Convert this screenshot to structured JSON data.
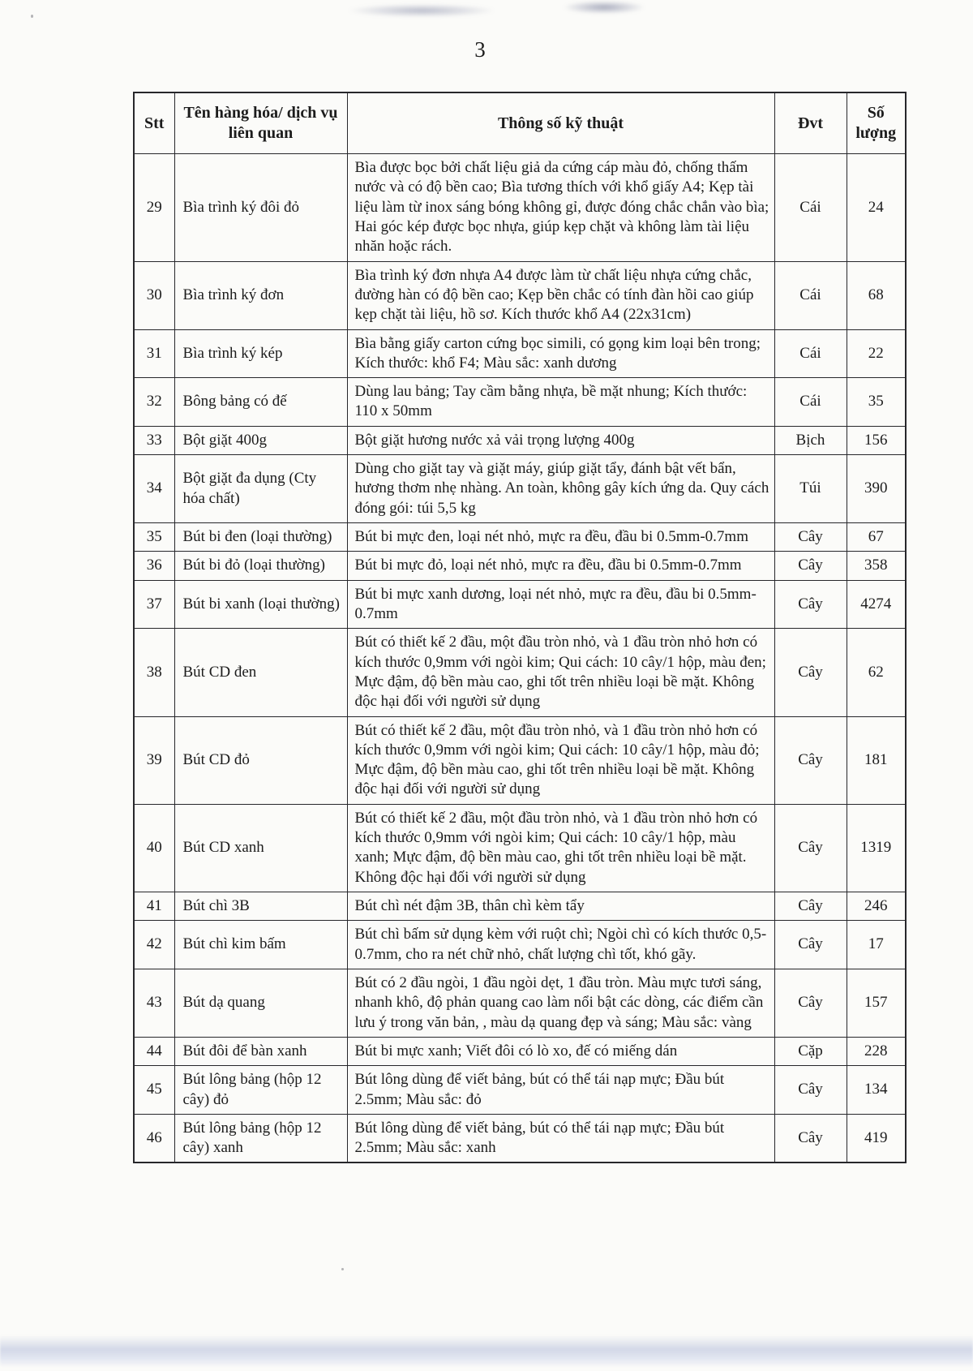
{
  "page": {
    "number": "3"
  },
  "colors": {
    "paper": "#fbfbf9",
    "ink": "#1c1c1c",
    "scan_band": "#c6cde2"
  },
  "table": {
    "headers": [
      "Stt",
      "Tên hàng hóa/ dịch vụ liên quan",
      "Thông số kỹ thuật",
      "Đvt",
      "Số lượng"
    ],
    "rows": [
      {
        "stt": "29",
        "name": "Bìa trình ký đôi đỏ",
        "spec": "Bìa được bọc bởi chất liệu giả da cứng cáp màu đỏ, chống thấm nước và có độ bền cao; Bìa tương thích với khổ giấy A4; Kẹp tài liệu làm từ inox sáng bóng không gỉ, được đóng chắc chắn vào bìa; Hai góc kép được bọc nhựa, giúp kẹp chặt và không làm tài liệu nhăn hoặc rách.",
        "unit": "Cái",
        "qty": "24"
      },
      {
        "stt": "30",
        "name": "Bìa trình ký đơn",
        "spec": "Bìa trình ký đơn nhựa A4 được làm từ chất liệu nhựa cứng chắc, đường hàn có độ bền cao; Kẹp bền chắc có tính đàn hồi cao giúp kẹp chặt tài liệu, hồ sơ. Kích thước khổ A4 (22x31cm)",
        "unit": "Cái",
        "qty": "68"
      },
      {
        "stt": "31",
        "name": "Bìa trình ký kép",
        "spec": "Bìa bằng giấy carton cứng bọc simili, có gọng kim loại bên trong; Kích thước: khổ F4; Màu sắc: xanh dương",
        "unit": "Cái",
        "qty": "22"
      },
      {
        "stt": "32",
        "name": "Bông bảng có đế",
        "spec": "Dùng lau bảng; Tay cầm bằng nhựa, bề mặt nhung; Kích thước: 110 x 50mm",
        "unit": "Cái",
        "qty": "35"
      },
      {
        "stt": "33",
        "name": "Bột giặt 400g",
        "spec": "Bột giặt hương nước xả vải trọng lượng 400g",
        "unit": "Bịch",
        "qty": "156"
      },
      {
        "stt": "34",
        "name": "Bột giặt đa dụng (Cty hóa chất)",
        "spec": "Dùng cho giặt tay và giặt máy, giúp giặt tẩy, đánh bật vết bẩn, hương thơm nhẹ nhàng. An toàn, không gây kích ứng da. Quy cách đóng gói: túi 5,5 kg",
        "unit": "Túi",
        "qty": "390"
      },
      {
        "stt": "35",
        "name": "Bút bi đen (loại thường)",
        "spec": "Bút bi mực đen, loại nét nhỏ, mực ra đều, đầu bi 0.5mm-0.7mm",
        "unit": "Cây",
        "qty": "67"
      },
      {
        "stt": "36",
        "name": "Bút bi đỏ (loại thường)",
        "spec": "Bút bi mực đỏ, loại nét nhỏ, mực ra đều, đầu bi 0.5mm-0.7mm",
        "unit": "Cây",
        "qty": "358"
      },
      {
        "stt": "37",
        "name": "Bút bi xanh (loại thường)",
        "spec": "Bút bi mực xanh dương, loại nét nhỏ, mực ra đều, đầu bi 0.5mm-0.7mm",
        "unit": "Cây",
        "qty": "4274"
      },
      {
        "stt": "38",
        "name": "Bút CD đen",
        "spec": "Bút có thiết kế 2 đầu, một đầu tròn nhỏ, và 1 đầu tròn nhỏ hơn có kích thước 0,9mm với ngòi kim; Qui cách: 10 cây/1 hộp, màu đen; Mực đậm, độ bền màu cao, ghi tốt trên nhiều loại bề mặt. Không độc hại đối với người sử dụng",
        "unit": "Cây",
        "qty": "62"
      },
      {
        "stt": "39",
        "name": "Bút CD đỏ",
        "spec": "Bút có thiết kế 2 đầu, một đầu tròn nhỏ, và 1 đầu tròn nhỏ hơn có kích thước 0,9mm với ngòi kim; Qui cách: 10 cây/1 hộp, màu đỏ; Mực đậm, độ bền màu cao, ghi tốt trên nhiều loại bề mặt. Không độc hại đối với người sử dụng",
        "unit": "Cây",
        "qty": "181"
      },
      {
        "stt": "40",
        "name": "Bút CD xanh",
        "spec": "Bút có thiết kế 2 đầu, một đầu tròn nhỏ, và 1 đầu tròn nhỏ hơn có kích thước 0,9mm với ngòi kim; Qui cách: 10 cây/1 hộp, màu xanh; Mực đậm, độ bền màu cao, ghi tốt trên nhiều loại bề mặt. Không độc hại đối với người sử dụng",
        "unit": "Cây",
        "qty": "1319"
      },
      {
        "stt": "41",
        "name": "Bút chì 3B",
        "spec": "Bút chì nét đậm 3B, thân chì kèm tẩy",
        "unit": "Cây",
        "qty": "246"
      },
      {
        "stt": "42",
        "name": "Bút chì kim bấm",
        "spec": "Bút chì bấm sử dụng kèm với ruột chì; Ngòi chì có kích thước 0,5-0.7mm, cho ra nét chữ nhỏ, chất lượng chì tốt, khó gãy.",
        "unit": "Cây",
        "qty": "17"
      },
      {
        "stt": "43",
        "name": "Bút dạ quang",
        "spec": "Bút có 2 đầu ngòi, 1 đầu ngòi dẹt, 1 đầu tròn. Màu mực tươi sáng, nhanh khô, độ phản quang cao làm nổi bật các dòng, các điểm cần lưu ý trong văn bản, , màu dạ quang đẹp và sáng; Màu sắc: vàng",
        "unit": "Cây",
        "qty": "157"
      },
      {
        "stt": "44",
        "name": "Bút đôi để bàn xanh",
        "spec": "Bút bi mực xanh; Viết đôi có lò xo, đế có miếng dán",
        "unit": "Cặp",
        "qty": "228"
      },
      {
        "stt": "45",
        "name": "Bút lông bảng (hộp 12 cây) đỏ",
        "spec": "Bút lông dùng để viết bảng, bút có thể tái nạp mực; Đầu bút 2.5mm; Màu sắc: đỏ",
        "unit": "Cây",
        "qty": "134"
      },
      {
        "stt": "46",
        "name": "Bút lông bảng (hộp 12 cây) xanh",
        "spec": "Bút lông dùng để viết bảng, bút có thể tái nạp mực; Đầu bút 2.5mm; Màu sắc: xanh",
        "unit": "Cây",
        "qty": "419"
      }
    ]
  }
}
